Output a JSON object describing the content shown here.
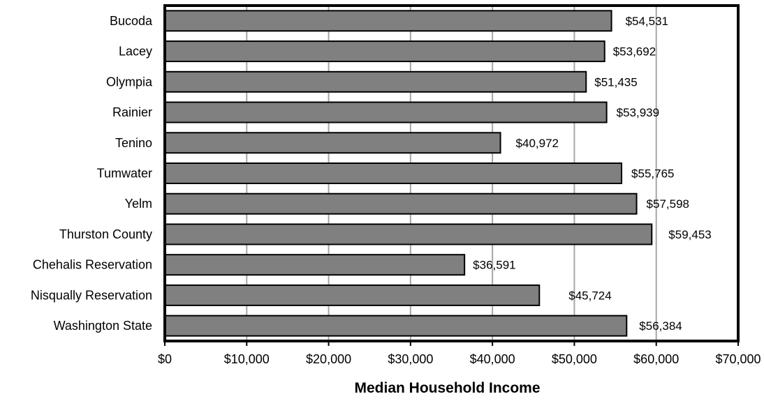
{
  "chart_data": {
    "type": "bar",
    "orientation": "horizontal",
    "categories": [
      "Bucoda",
      "Lacey",
      "Olympia",
      "Rainier",
      "Tenino",
      "Tumwater",
      "Yelm",
      "Thurston County",
      "Chehalis Reservation",
      "Nisqually Reservation",
      "Washington State"
    ],
    "values": [
      54531,
      53692,
      51435,
      53939,
      40972,
      55765,
      57598,
      59453,
      36591,
      45724,
      56384
    ],
    "data_labels": [
      "$54,531",
      "$53,692",
      "$51,435",
      "$53,939",
      "$40,972",
      "$55,765",
      "$57,598",
      "$59,453",
      "$36,591",
      "$45,724",
      "$56,384"
    ],
    "xlim": [
      0,
      70000
    ],
    "x_ticks": [
      0,
      10000,
      20000,
      30000,
      40000,
      50000,
      60000,
      70000
    ],
    "x_tick_labels": [
      "$0",
      "$10,000",
      "$20,000",
      "$30,000",
      "$40,000",
      "$50,000",
      "$60,000",
      "$70,000"
    ],
    "xlabel": "Median Household Income",
    "ylabel": "",
    "title": "",
    "grid": "vertical",
    "legend": "none",
    "colors": {
      "bar_fill": "#808080",
      "bar_stroke": "#000000",
      "grid": "#a6a6a6",
      "frame": "#000000"
    }
  }
}
